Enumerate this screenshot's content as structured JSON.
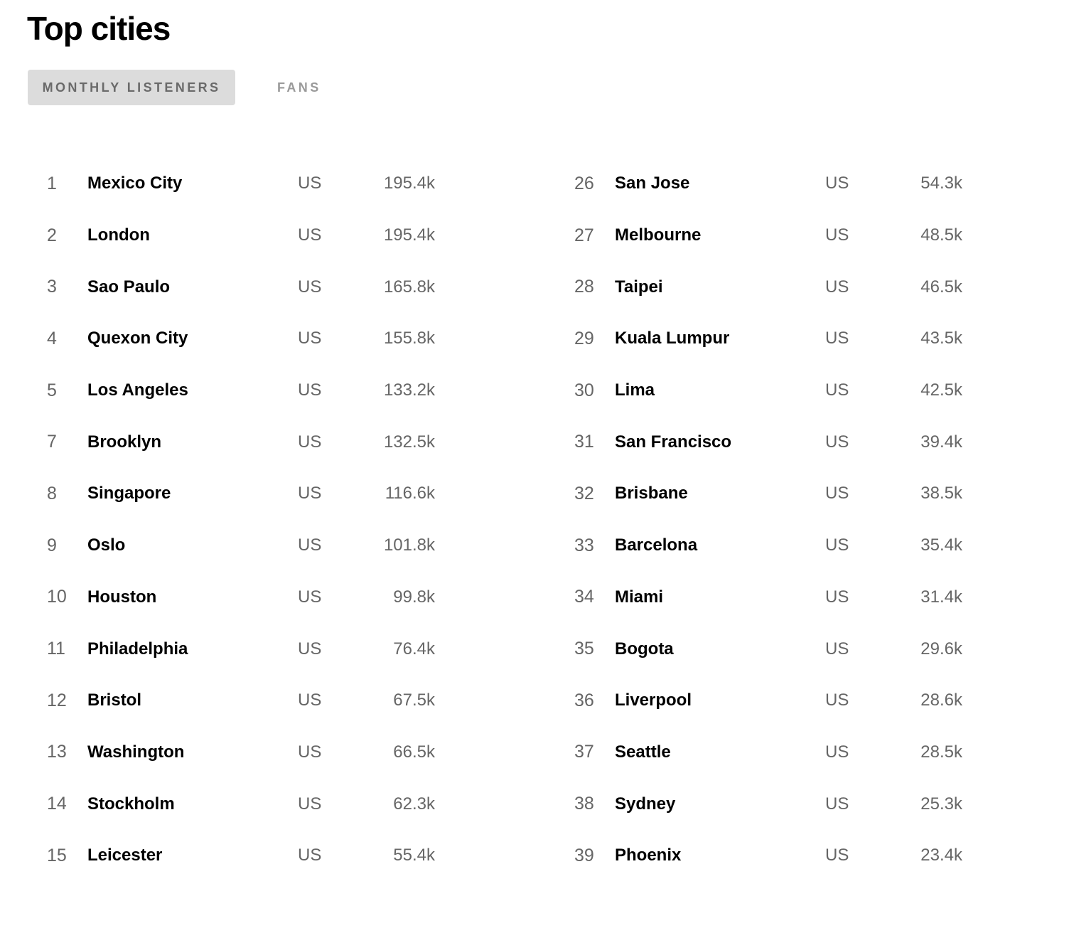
{
  "title": "Top cities",
  "tabs": [
    {
      "label": "MONTHLY LISTENERS",
      "active": true
    },
    {
      "label": "FANS",
      "active": false
    }
  ],
  "columns": [
    {
      "rows": [
        {
          "rank": "1",
          "city": "Mexico City",
          "country": "US",
          "listeners": "195.4k"
        },
        {
          "rank": "2",
          "city": "London",
          "country": "US",
          "listeners": "195.4k"
        },
        {
          "rank": "3",
          "city": "Sao Paulo",
          "country": "US",
          "listeners": "165.8k"
        },
        {
          "rank": "4",
          "city": "Quexon City",
          "country": "US",
          "listeners": "155.8k"
        },
        {
          "rank": "5",
          "city": "Los Angeles",
          "country": "US",
          "listeners": "133.2k"
        },
        {
          "rank": "7",
          "city": "Brooklyn",
          "country": "US",
          "listeners": "132.5k"
        },
        {
          "rank": "8",
          "city": "Singapore",
          "country": "US",
          "listeners": "116.6k"
        },
        {
          "rank": "9",
          "city": "Oslo",
          "country": "US",
          "listeners": "101.8k"
        },
        {
          "rank": "10",
          "city": "Houston",
          "country": "US",
          "listeners": "99.8k"
        },
        {
          "rank": "11",
          "city": "Philadelphia",
          "country": "US",
          "listeners": "76.4k"
        },
        {
          "rank": "12",
          "city": "Bristol",
          "country": "US",
          "listeners": "67.5k"
        },
        {
          "rank": "13",
          "city": "Washington",
          "country": "US",
          "listeners": "66.5k"
        },
        {
          "rank": "14",
          "city": "Stockholm",
          "country": "US",
          "listeners": "62.3k"
        },
        {
          "rank": "15",
          "city": "Leicester",
          "country": "US",
          "listeners": "55.4k"
        }
      ]
    },
    {
      "rows": [
        {
          "rank": "26",
          "city": "San Jose",
          "country": "US",
          "listeners": "54.3k"
        },
        {
          "rank": "27",
          "city": "Melbourne",
          "country": "US",
          "listeners": "48.5k"
        },
        {
          "rank": "28",
          "city": "Taipei",
          "country": "US",
          "listeners": "46.5k"
        },
        {
          "rank": "29",
          "city": "Kuala Lumpur",
          "country": "US",
          "listeners": "43.5k"
        },
        {
          "rank": "30",
          "city": "Lima",
          "country": "US",
          "listeners": "42.5k"
        },
        {
          "rank": "31",
          "city": "San Francisco",
          "country": "US",
          "listeners": "39.4k"
        },
        {
          "rank": "32",
          "city": "Brisbane",
          "country": "US",
          "listeners": "38.5k"
        },
        {
          "rank": "33",
          "city": "Barcelona",
          "country": "US",
          "listeners": "35.4k"
        },
        {
          "rank": "34",
          "city": "Miami",
          "country": "US",
          "listeners": "31.4k"
        },
        {
          "rank": "35",
          "city": "Bogota",
          "country": "US",
          "listeners": "29.6k"
        },
        {
          "rank": "36",
          "city": "Liverpool",
          "country": "US",
          "listeners": "28.6k"
        },
        {
          "rank": "37",
          "city": "Seattle",
          "country": "US",
          "listeners": "28.5k"
        },
        {
          "rank": "38",
          "city": "Sydney",
          "country": "US",
          "listeners": "25.3k"
        },
        {
          "rank": "39",
          "city": "Phoenix",
          "country": "US",
          "listeners": "23.4k"
        }
      ]
    }
  ],
  "colors": {
    "active_tab_bg": "#dcdcdc",
    "active_tab_text": "#6a6a6a",
    "inactive_tab_text": "#9a9a9a",
    "secondary_text": "#666666",
    "primary_text": "#000000"
  }
}
